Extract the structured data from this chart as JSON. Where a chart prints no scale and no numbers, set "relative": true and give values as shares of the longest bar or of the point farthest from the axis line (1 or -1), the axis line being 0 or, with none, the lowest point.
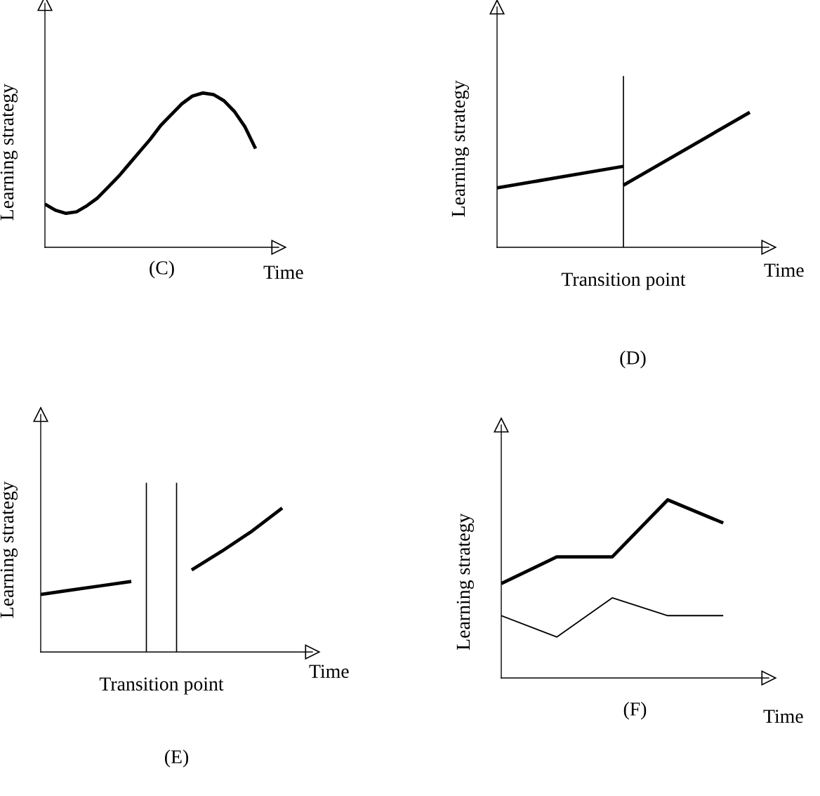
{
  "chart_data": [
    {
      "type": "line",
      "title": "(C)",
      "xlabel": "Time",
      "ylabel": "Learning strategy",
      "relative": true,
      "categories": [
        null,
        null,
        null,
        null,
        null,
        null,
        null,
        null,
        null,
        null,
        null,
        null,
        null,
        null,
        null,
        null,
        null,
        null,
        null,
        null,
        null
      ],
      "series": [
        {
          "color": "#000000",
          "values": [
            0.28,
            0.24,
            0.22,
            0.23,
            0.27,
            0.32,
            0.39,
            0.46,
            0.54,
            0.62,
            0.7,
            0.79,
            0.86,
            0.93,
            0.98,
            1.0,
            0.99,
            0.95,
            0.88,
            0.78,
            0.64
          ]
        }
      ]
    },
    {
      "type": "line",
      "title": "(D)",
      "xlabel": "Time",
      "ylabel": "Learning strategy",
      "relative": true,
      "categories": [
        null,
        null,
        null
      ],
      "series": [
        {
          "color": "#000000",
          "values": [
            0.44,
            0.6,
            null
          ]
        },
        {
          "color": "#000000",
          "values": [
            null,
            0.46,
            1.0
          ]
        }
      ],
      "annotations": [
        "Transition point"
      ]
    },
    {
      "type": "line",
      "title": "(E)",
      "xlabel": "Time",
      "ylabel": "Learning strategy",
      "relative": true,
      "categories": [
        null,
        null,
        null,
        null,
        null,
        null,
        null,
        null,
        null,
        null
      ],
      "series": [
        {
          "color": "#000000",
          "values": [
            0.4,
            0.43,
            0.46,
            0.49,
            null,
            null,
            null,
            null,
            null,
            null
          ]
        },
        {
          "color": "#000000",
          "values": [
            null,
            null,
            null,
            null,
            null,
            0.57,
            0.7,
            0.84,
            1.0,
            null
          ]
        }
      ],
      "annotations": [
        "Transition point"
      ]
    },
    {
      "type": "line",
      "title": "(F)",
      "xlabel": "Time",
      "ylabel": "Learning strategy",
      "relative": true,
      "categories": [
        null,
        null,
        null,
        null,
        null
      ],
      "series": [
        {
          "color": "#000000",
          "values": [
            0.53,
            0.68,
            0.68,
            1.0,
            0.87
          ]
        },
        {
          "color": "#000000",
          "values": [
            0.35,
            0.23,
            0.45,
            0.35,
            0.35
          ]
        }
      ]
    }
  ]
}
